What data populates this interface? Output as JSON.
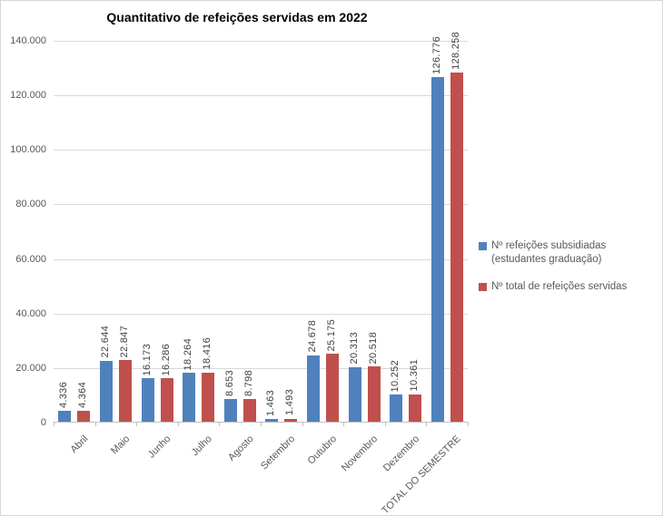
{
  "chart_data": {
    "type": "bar",
    "title": "Quantitativo de refeições servidas em 2022",
    "categories": [
      "Abril",
      "Maio",
      "Junho",
      "Julho",
      "Agosto",
      "Setembro",
      "Outubro",
      "Novembro",
      "Dezembro",
      "TOTAL DO SEMESTRE"
    ],
    "series": [
      {
        "name": "Nº refeições subsidiadas (estudantes graduação)",
        "color": "#4F81BD",
        "values": [
          4336,
          22644,
          16173,
          18264,
          8653,
          1463,
          24678,
          20313,
          10252,
          126776
        ],
        "labels": [
          "4.336",
          "22.644",
          "16.173",
          "18.264",
          "8.653",
          "1.463",
          "24.678",
          "20.313",
          "10.252",
          "126.776"
        ]
      },
      {
        "name": "Nº total de refeições servidas",
        "color": "#C0504D",
        "values": [
          4364,
          22847,
          16286,
          18416,
          8798,
          1493,
          25175,
          20518,
          10361,
          128258
        ],
        "labels": [
          "4.364",
          "22.847",
          "16.286",
          "18.416",
          "8.798",
          "1.493",
          "25.175",
          "20.518",
          "10.361",
          "128.258"
        ]
      }
    ],
    "ylim": [
      0,
      140000
    ],
    "ytick_values": [
      0,
      20000,
      40000,
      60000,
      80000,
      100000,
      120000,
      140000
    ],
    "ytick_labels": [
      "0",
      "20.000",
      "40.000",
      "60.000",
      "80.000",
      "100.000",
      "120.000",
      "140.000"
    ],
    "grid": true,
    "legend_position": "right",
    "data_label_rotation": 270,
    "x_label_rotation": 45,
    "number_format": "thousands-dot"
  },
  "colors": {
    "series1": "#4F81BD",
    "series2": "#C0504D",
    "gridline": "#D9D9D9",
    "axis_line": "#BFBFBF",
    "axis_text": "#595959",
    "data_label_text": "#404040",
    "title_text": "#000000"
  }
}
